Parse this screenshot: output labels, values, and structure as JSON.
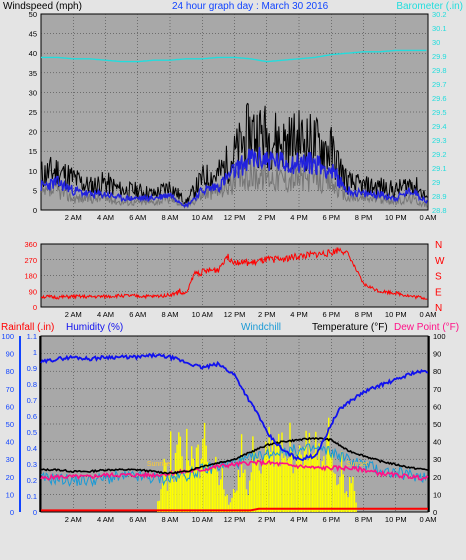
{
  "colors": {
    "background": "#e4e4e4",
    "plot_bg": "#a8a8a8",
    "wind_gust": "#000000",
    "wind_speed": "#2222dd",
    "wind_avg": "#777777",
    "barometer": "#22dddd",
    "direction": "#ff0000",
    "humidity": "#1111ee",
    "temperature": "#000000",
    "windchill": "#1a9ad6",
    "dewpoint": "#ff1188",
    "rainfall": "#ff0000",
    "solar": "#ffff00",
    "header_blue": "#1144ff",
    "header_red": "#ff0000",
    "header_pink": "#ff1188",
    "header_cyan": "#22dddd",
    "header_green": "#11aa11"
  },
  "chart_data": [
    {
      "type": "line",
      "title": "24 hour graph day : March 30 2016",
      "ylabel": "Windspeed (mph)",
      "y2label": "Barometer (.in)",
      "yticks": [
        "0",
        "5",
        "10",
        "15",
        "20",
        "25",
        "30",
        "35",
        "40",
        "45",
        "50"
      ],
      "ylim": [
        0,
        50
      ],
      "y2ticks": [
        "28.8",
        "28.9",
        "29",
        "29.1",
        "29.2",
        "29.3",
        "29.4",
        "29.5",
        "29.6",
        "29.7",
        "29.8",
        "29.9",
        "30",
        "30.1",
        "30.2"
      ],
      "y2lim": [
        28.8,
        30.2
      ],
      "xticks": [
        "2 AM",
        "4 AM",
        "6 AM",
        "8 AM",
        "10 AM",
        "12 PM",
        "2 PM",
        "4 PM",
        "6 PM",
        "8 PM",
        "10 PM",
        "0 AM"
      ],
      "xlim": [
        0,
        24
      ],
      "grid": true,
      "series": [
        {
          "name": "Barometer (.in)",
          "axis": "right",
          "x": [
            0,
            1,
            2,
            3,
            4,
            5,
            6,
            7,
            8,
            9,
            10,
            11,
            12,
            13,
            14,
            15,
            16,
            17,
            18,
            19,
            20,
            21,
            22,
            23,
            24
          ],
          "values": [
            29.89,
            29.89,
            29.88,
            29.88,
            29.87,
            29.86,
            29.86,
            29.87,
            29.87,
            29.88,
            29.88,
            29.89,
            29.89,
            29.88,
            29.86,
            29.87,
            29.88,
            29.89,
            29.91,
            29.92,
            29.93,
            29.93,
            29.94,
            29.94,
            29.94
          ]
        },
        {
          "x": [
            0,
            1,
            2,
            3,
            4,
            5,
            6,
            7,
            8,
            9,
            10,
            11,
            12,
            13,
            14,
            15,
            16,
            17,
            18,
            19,
            20,
            21,
            22,
            23,
            24
          ],
          "values": [
            9,
            10,
            8,
            6,
            7,
            5,
            5,
            4,
            6,
            2,
            8,
            9,
            14,
            20,
            19,
            17,
            18,
            17,
            15,
            7,
            6,
            6,
            5,
            7,
            3
          ]
        },
        {
          "x": [
            0,
            1,
            2,
            3,
            4,
            5,
            6,
            7,
            8,
            9,
            10,
            11,
            12,
            13,
            14,
            15,
            16,
            17,
            18,
            19,
            20,
            21,
            22,
            23,
            24
          ],
          "values": [
            6,
            7,
            5,
            4,
            4,
            3,
            3,
            3,
            4,
            1,
            5,
            6,
            10,
            13,
            13,
            12,
            12,
            12,
            10,
            5,
            4,
            4,
            3,
            5,
            2
          ]
        },
        {
          "x": [
            0,
            1,
            2,
            3,
            4,
            5,
            6,
            7,
            8,
            9,
            10,
            11,
            12,
            13,
            14,
            15,
            16,
            17,
            18,
            19,
            20,
            21,
            22,
            23,
            24
          ],
          "values": [
            4,
            5,
            3,
            3,
            3,
            2,
            2,
            2,
            3,
            1,
            4,
            5,
            7,
            9,
            9,
            8,
            8,
            8,
            7,
            3,
            3,
            3,
            2,
            3,
            1
          ]
        }
      ]
    },
    {
      "type": "line",
      "yticks": [
        "0",
        "90",
        "180",
        "270",
        "360"
      ],
      "ylim": [
        0,
        360
      ],
      "y2ticks": [
        "N",
        "E",
        "S",
        "W",
        "N"
      ],
      "xticks": [
        "2 AM",
        "4 AM",
        "6 AM",
        "8 AM",
        "10 AM",
        "12 PM",
        "2 PM",
        "4 PM",
        "6 PM",
        "8 PM",
        "10 PM",
        "0 AM"
      ],
      "xlim": [
        0,
        24
      ],
      "grid": true,
      "series": [
        {
          "x": [
            0,
            1,
            2,
            3,
            4,
            5,
            6,
            7,
            8,
            8.5,
            9,
            9.5,
            10,
            11,
            11.5,
            12,
            13,
            14,
            15,
            16,
            17,
            18,
            18.5,
            19,
            20,
            21,
            22,
            23,
            24
          ],
          "values": [
            60,
            55,
            60,
            58,
            60,
            65,
            62,
            60,
            70,
            80,
            75,
            190,
            200,
            215,
            290,
            260,
            250,
            270,
            275,
            290,
            300,
            310,
            330,
            310,
            130,
            90,
            80,
            60,
            50
          ]
        }
      ]
    },
    {
      "type": "line",
      "y_left_ticks": [
        "0",
        "10",
        "20",
        "30",
        "40",
        "50",
        "60",
        "70",
        "80",
        "90",
        "100"
      ],
      "y_rain_ticks": [
        "0",
        "0.1",
        "0.2",
        "0.3",
        "0.4",
        "0.5",
        "0.6",
        "0.7",
        "0.8",
        "0.9",
        "1",
        "1.1"
      ],
      "y_right_ticks": [
        "0",
        "10",
        "20",
        "30",
        "40",
        "50",
        "60",
        "70",
        "80",
        "90",
        "100"
      ],
      "ylim": [
        0,
        100
      ],
      "xticks": [
        "2 AM",
        "4 AM",
        "6 AM",
        "8 AM",
        "10 AM",
        "12 PM",
        "2 PM",
        "4 PM",
        "6 PM",
        "8 PM",
        "10 PM",
        "0 AM"
      ],
      "xlim": [
        0,
        24
      ],
      "grid": true,
      "annotations": [
        {
          "text": "Sunrise",
          "x": 7.3,
          "y": 26
        },
        {
          "text": "Sunset",
          "x": 19.6,
          "y": 26
        }
      ],
      "series": [
        {
          "name": "Humidity (%)",
          "axis": "left",
          "x": [
            0,
            0.5,
            1,
            2,
            3,
            4,
            5,
            6,
            7,
            8,
            9,
            10,
            11,
            12,
            13,
            13.5,
            14,
            14.5,
            15,
            16,
            17,
            17.5,
            18,
            18.5,
            19,
            20,
            21,
            22,
            23,
            24
          ],
          "values": [
            85,
            86,
            87,
            88,
            87,
            88,
            88,
            88,
            89,
            88,
            85,
            82,
            84,
            78,
            62,
            55,
            45,
            40,
            35,
            30,
            32,
            40,
            50,
            58,
            62,
            68,
            72,
            75,
            79,
            80
          ]
        },
        {
          "name": "Temperature (°F)",
          "axis": "right",
          "x": [
            0,
            1,
            2,
            3,
            4,
            5,
            6,
            7,
            8,
            9,
            10,
            11,
            12,
            13,
            14,
            15,
            16,
            17,
            18,
            19,
            20,
            21,
            22,
            23,
            24
          ],
          "values": [
            24,
            24,
            23,
            23,
            24,
            24,
            24,
            23,
            22,
            23,
            26,
            28,
            30,
            34,
            38,
            40,
            41,
            42,
            41,
            35,
            32,
            29,
            27,
            25,
            24
          ]
        },
        {
          "name": "Windchill",
          "axis": "right",
          "x": [
            0,
            1,
            2,
            3,
            4,
            5,
            6,
            7,
            8,
            9,
            10,
            11,
            12,
            13,
            14,
            15,
            16,
            17,
            18,
            19,
            20,
            21,
            22,
            23,
            24
          ],
          "values": [
            19,
            19,
            18,
            18,
            19,
            20,
            20,
            19,
            19,
            21,
            24,
            26,
            28,
            30,
            33,
            35,
            35,
            36,
            34,
            30,
            27,
            24,
            22,
            21,
            20
          ]
        },
        {
          "name": "Dew Point (°F)",
          "axis": "right",
          "x": [
            0,
            1,
            2,
            3,
            4,
            5,
            6,
            7,
            8,
            9,
            10,
            11,
            12,
            13,
            14,
            15,
            16,
            17,
            18,
            19,
            20,
            21,
            22,
            23,
            24
          ],
          "values": [
            19,
            20,
            20,
            20,
            21,
            21,
            21,
            21,
            22,
            23,
            24,
            26,
            27,
            28,
            28,
            27,
            26,
            25,
            25,
            25,
            24,
            22,
            21,
            20,
            19
          ]
        },
        {
          "name": "Rainfall (.in)",
          "axis": "rain",
          "x": [
            0,
            13,
            13.5,
            24
          ],
          "values": [
            0.01,
            0.01,
            0.02,
            0.02
          ]
        },
        {
          "axis": "right",
          "x": [
            7.2,
            7.4,
            7.6,
            7.8,
            8.0,
            8.2,
            8.4,
            8.6,
            8.8,
            9.0,
            9.2,
            9.4,
            9.6,
            9.8,
            10.0,
            10.2,
            10.4,
            10.6,
            10.8,
            11.0,
            11.2,
            11.4,
            11.6,
            11.8,
            12.0,
            12.2,
            12.4,
            12.6,
            12.8,
            13.0,
            13.2,
            13.4,
            13.6,
            13.8,
            14.0,
            14.2,
            14.4,
            14.6,
            14.8,
            15.0,
            15.2,
            15.4,
            15.6,
            15.8,
            16.0,
            16.2,
            16.4,
            16.6,
            16.8,
            17.0,
            17.2,
            17.4,
            17.6,
            17.8,
            18.0,
            18.2,
            18.4,
            18.6,
            18.8,
            19.0,
            19.2,
            19.4,
            19.6
          ],
          "values": [
            8,
            12,
            30,
            18,
            42,
            25,
            35,
            48,
            20,
            45,
            38,
            30,
            50,
            28,
            48,
            40,
            22,
            33,
            46,
            18,
            30,
            12,
            5,
            8,
            15,
            20,
            40,
            28,
            10,
            26,
            48,
            35,
            20,
            30,
            48,
            44,
            26,
            40,
            36,
            49,
            30,
            45,
            28,
            48,
            38,
            25,
            45,
            40,
            30,
            48,
            35,
            28,
            40,
            46,
            30,
            22,
            18,
            38,
            12,
            8,
            26,
            10,
            5
          ]
        }
      ]
    }
  ]
}
